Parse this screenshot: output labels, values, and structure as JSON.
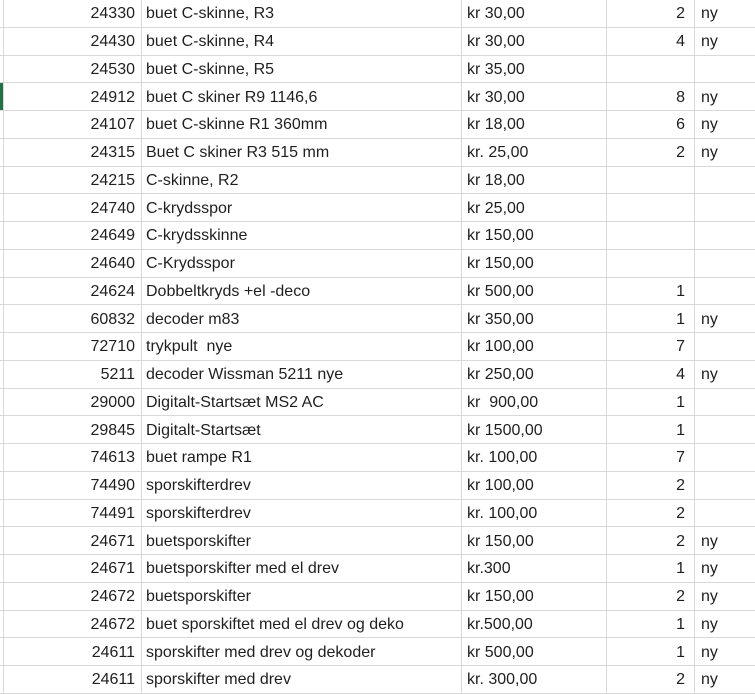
{
  "colors": {
    "gridline": "#d9d9d9",
    "marker_green": "#217346",
    "text": "#1f1f1f",
    "background": "#ffffff"
  },
  "columns": {
    "id": "item-number",
    "desc": "description",
    "price": "price",
    "qty": "quantity",
    "ny": "condition-flag"
  },
  "rows": [
    {
      "id": "24330",
      "desc": "buet C-skinne, R3",
      "price": "kr 30,00",
      "qty": "2",
      "ny": "ny",
      "marker": false
    },
    {
      "id": "24430",
      "desc": "buet C-skinne, R4",
      "price": "kr 30,00",
      "qty": "4",
      "ny": "ny",
      "marker": false
    },
    {
      "id": "24530",
      "desc": "buet C-skinne, R5",
      "price": "kr 35,00",
      "qty": "",
      "ny": "",
      "marker": false
    },
    {
      "id": "24912",
      "desc": "buet C skiner R9 1146,6",
      "price": "kr 30,00",
      "qty": "8",
      "ny": "ny",
      "marker": true
    },
    {
      "id": "24107",
      "desc": "buet C-skinne R1 360mm",
      "price": "kr 18,00",
      "qty": "6",
      "ny": "ny",
      "marker": false
    },
    {
      "id": "24315",
      "desc": "Buet C skiner R3 515 mm",
      "price": "kr. 25,00",
      "qty": "2",
      "ny": "ny",
      "marker": false
    },
    {
      "id": "24215",
      "desc": "C-skinne, R2",
      "price": "kr 18,00",
      "qty": "",
      "ny": "",
      "marker": false
    },
    {
      "id": "24740",
      "desc": "C-krydsspor",
      "price": "kr 25,00",
      "qty": "",
      "ny": "",
      "marker": false
    },
    {
      "id": "24649",
      "desc": "C-krydsskinne",
      "price": "kr 150,00",
      "qty": "",
      "ny": "",
      "marker": false
    },
    {
      "id": "24640",
      "desc": "C-Krydsspor",
      "price": "kr 150,00",
      "qty": "",
      "ny": "",
      "marker": false
    },
    {
      "id": "24624",
      "desc": "Dobbeltkryds +el -deco",
      "price": "kr 500,00",
      "qty": "1",
      "ny": "",
      "marker": false
    },
    {
      "id": "60832",
      "desc": "decoder m83",
      "price": "kr 350,00",
      "qty": "1",
      "ny": "ny",
      "marker": false
    },
    {
      "id": "72710",
      "desc": "trykpult  nye",
      "price": "kr 100,00",
      "qty": "7",
      "ny": "",
      "marker": false
    },
    {
      "id": "5211",
      "desc": "decoder Wissman 5211 nye",
      "price": "kr 250,00",
      "qty": "4",
      "ny": "ny",
      "marker": false
    },
    {
      "id": "29000",
      "desc": "Digitalt-Startsæt MS2 AC",
      "price": "kr  900,00",
      "qty": "1",
      "ny": "",
      "marker": false
    },
    {
      "id": "29845",
      "desc": "Digitalt-Startsæt",
      "price": "kr 1500,00",
      "qty": "1",
      "ny": "",
      "marker": false
    },
    {
      "id": "74613",
      "desc": "buet rampe R1",
      "price": "kr. 100,00",
      "qty": "7",
      "ny": "",
      "marker": false
    },
    {
      "id": "74490",
      "desc": "sporskifterdrev",
      "price": "kr 100,00",
      "qty": "2",
      "ny": "",
      "marker": false
    },
    {
      "id": "74491",
      "desc": "sporskifterdrev",
      "price": "kr. 100,00",
      "qty": "2",
      "ny": "",
      "marker": false
    },
    {
      "id": "24671",
      "desc": "buetsporskifter",
      "price": "kr 150,00",
      "qty": "2",
      "ny": "ny",
      "marker": false
    },
    {
      "id": "24671",
      "desc": "buetsporskifter med el drev",
      "price": "kr.300",
      "qty": "1",
      "ny": "ny",
      "marker": false
    },
    {
      "id": "24672",
      "desc": "buetsporskifter",
      "price": "kr 150,00",
      "qty": "2",
      "ny": "ny",
      "marker": false
    },
    {
      "id": "24672",
      "desc": "buet sporskiftet med el drev og deko",
      "price": "kr.500,00",
      "qty": "1",
      "ny": "ny",
      "marker": false
    },
    {
      "id": "24611",
      "desc": "sporskifter med drev og dekoder",
      "price": "kr 500,00",
      "qty": "1",
      "ny": "ny",
      "marker": false
    },
    {
      "id": "24611",
      "desc": "sporskifter med drev",
      "price": "kr. 300,00",
      "qty": "2",
      "ny": "ny",
      "marker": false
    }
  ]
}
